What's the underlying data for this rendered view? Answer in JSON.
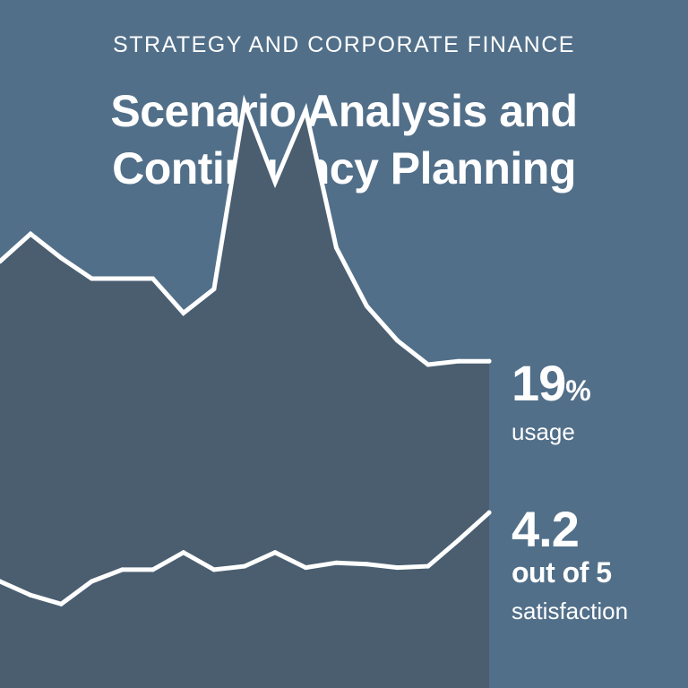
{
  "header": {
    "eyebrow": "STRATEGY AND CORPORATE FINANCE",
    "title_line1": "Scenario Analysis and",
    "title_line2": "Contingency Planning"
  },
  "stats": {
    "usage": {
      "value": "19",
      "unit": "%",
      "label": "usage"
    },
    "satisfaction": {
      "value": "4.2",
      "sub": "out of 5",
      "label": "satisfaction"
    }
  },
  "colors": {
    "background": "#516f89",
    "area_fill": "#4a5e70",
    "line": "#ffffff",
    "text": "#ffffff"
  },
  "chart_data": {
    "type": "area",
    "title": "Scenario Analysis and Contingency Planning",
    "xlabel": "",
    "ylabel": "",
    "grid": false,
    "legend": "none",
    "x": [
      0,
      1,
      2,
      3,
      4,
      5,
      6,
      7,
      8,
      9,
      10,
      11,
      12,
      13,
      14,
      15,
      16
    ],
    "series": [
      {
        "name": "usage",
        "unit": "%",
        "final_value": 19,
        "relative_values": [
          62,
          66,
          62.5,
          59.5,
          59.5,
          59.5,
          54.5,
          58,
          85,
          73.5,
          84,
          64,
          55.5,
          50.5,
          47,
          47.5,
          47.5
        ]
      },
      {
        "name": "satisfaction",
        "unit": "out of 5",
        "final_value": 4.2,
        "relative_values": [
          15.5,
          13.5,
          12.2,
          15.5,
          17.2,
          17.2,
          19.7,
          17.2,
          17.7,
          19.7,
          17.5,
          18.2,
          18,
          17.5,
          17.7,
          21.5,
          25.5
        ]
      }
    ],
    "ylim": [
      0,
      100
    ]
  }
}
